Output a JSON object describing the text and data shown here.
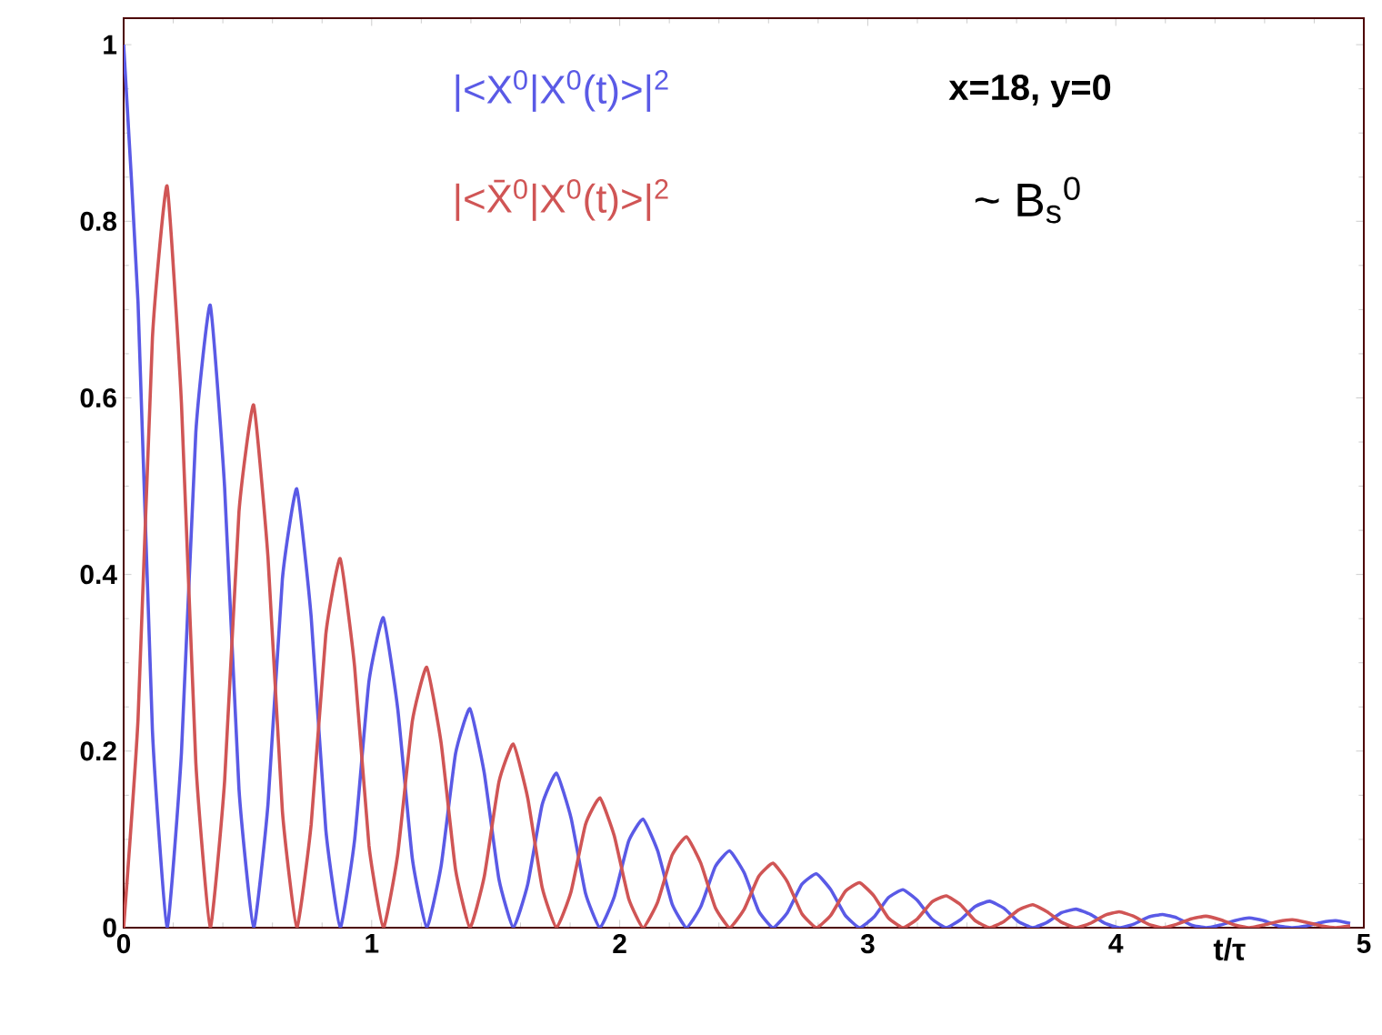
{
  "chart_data": {
    "type": "line",
    "xlabel": "t/τ",
    "x": [
      0,
      0.058,
      0.116,
      0.175,
      0.233,
      0.291,
      0.349,
      0.407,
      0.465,
      0.524,
      0.582,
      0.64,
      0.698,
      0.756,
      0.815,
      0.873,
      0.931,
      0.989,
      1.047,
      1.105,
      1.164,
      1.222,
      1.28,
      1.338,
      1.396,
      1.454,
      1.513,
      1.571,
      1.629,
      1.687,
      1.745,
      1.804,
      1.862,
      1.92,
      1.978,
      2.036,
      2.094,
      2.153,
      2.211,
      2.269,
      2.327,
      2.385,
      2.443,
      2.502,
      2.56,
      2.618,
      2.676,
      2.734,
      2.793,
      2.851,
      2.909,
      2.967,
      3.025,
      3.083,
      3.142,
      3.2,
      3.258,
      3.316,
      3.374,
      3.433,
      3.491,
      3.549,
      3.607,
      3.665,
      3.723,
      3.782,
      3.84,
      3.898,
      3.956,
      4.014,
      4.072,
      4.131,
      4.189,
      4.247,
      4.305,
      4.363,
      4.422,
      4.48,
      4.538,
      4.596,
      4.654,
      4.712,
      4.771,
      4.829,
      4.887,
      4.945
    ],
    "series": [
      {
        "name": "|<X$^{0}$|X$^{0}$(t)>|$^{2}$",
        "color": "#5a5ae6",
        "values": [
          1.0,
          0.708,
          0.223,
          0,
          0.198,
          0.561,
          0.705,
          0.499,
          0.157,
          0,
          0.14,
          0.395,
          0.497,
          0.352,
          0.111,
          0,
          0.099,
          0.279,
          0.351,
          0.248,
          0.078,
          0,
          0.07,
          0.197,
          0.248,
          0.175,
          0.055,
          0,
          0.049,
          0.139,
          0.175,
          0.124,
          0.039,
          0,
          0.035,
          0.098,
          0.123,
          0.087,
          0.027,
          0,
          0.024,
          0.069,
          0.087,
          0.062,
          0.019,
          0,
          0.017,
          0.049,
          0.061,
          0.043,
          0.014,
          0,
          0.012,
          0.034,
          0.043,
          0.031,
          0.01,
          0,
          0.009,
          0.024,
          0.03,
          0.022,
          0.007,
          0,
          0.006,
          0.017,
          0.021,
          0.015,
          0.005,
          0,
          0.004,
          0.012,
          0.015,
          0.011,
          0.003,
          0,
          0.003,
          0.008,
          0.011,
          0.008,
          0.002,
          0,
          0.002,
          0.006,
          0.008,
          0.005
        ]
      },
      {
        "name": "|<X̄$^{0}$|X$^{0}$(t)>|$^{2}$",
        "color": "#d05555",
        "values": [
          0,
          0.236,
          0.668,
          0.84,
          0.594,
          0.187,
          0,
          0.166,
          0.471,
          0.592,
          0.419,
          0.132,
          0,
          0.117,
          0.332,
          0.418,
          0.296,
          0.093,
          0,
          0.083,
          0.234,
          0.295,
          0.209,
          0.066,
          0,
          0.058,
          0.165,
          0.208,
          0.147,
          0.046,
          0,
          0.041,
          0.117,
          0.147,
          0.104,
          0.033,
          0,
          0.029,
          0.082,
          0.103,
          0.073,
          0.023,
          0,
          0.021,
          0.058,
          0.073,
          0.052,
          0.016,
          0,
          0.014,
          0.041,
          0.051,
          0.036,
          0.011,
          0,
          0.01,
          0.029,
          0.036,
          0.026,
          0.008,
          0,
          0.007,
          0.02,
          0.026,
          0.018,
          0.006,
          0,
          0.005,
          0.014,
          0.018,
          0.013,
          0.004,
          0,
          0.004,
          0.01,
          0.013,
          0.009,
          0.003,
          0,
          0.003,
          0.007,
          0.009,
          0.006,
          0.002,
          0,
          0.002
        ]
      }
    ],
    "annotations": [
      "x=18, y=0",
      "~ B$_{s}$$^{0}$"
    ],
    "xlim": [
      0,
      5
    ],
    "ylim": [
      0,
      1.03
    ],
    "xticks": [
      0,
      1,
      2,
      3,
      4,
      5
    ],
    "yticks": [
      0,
      0.2,
      0.4,
      0.6,
      0.8,
      1
    ],
    "grid": false
  }
}
